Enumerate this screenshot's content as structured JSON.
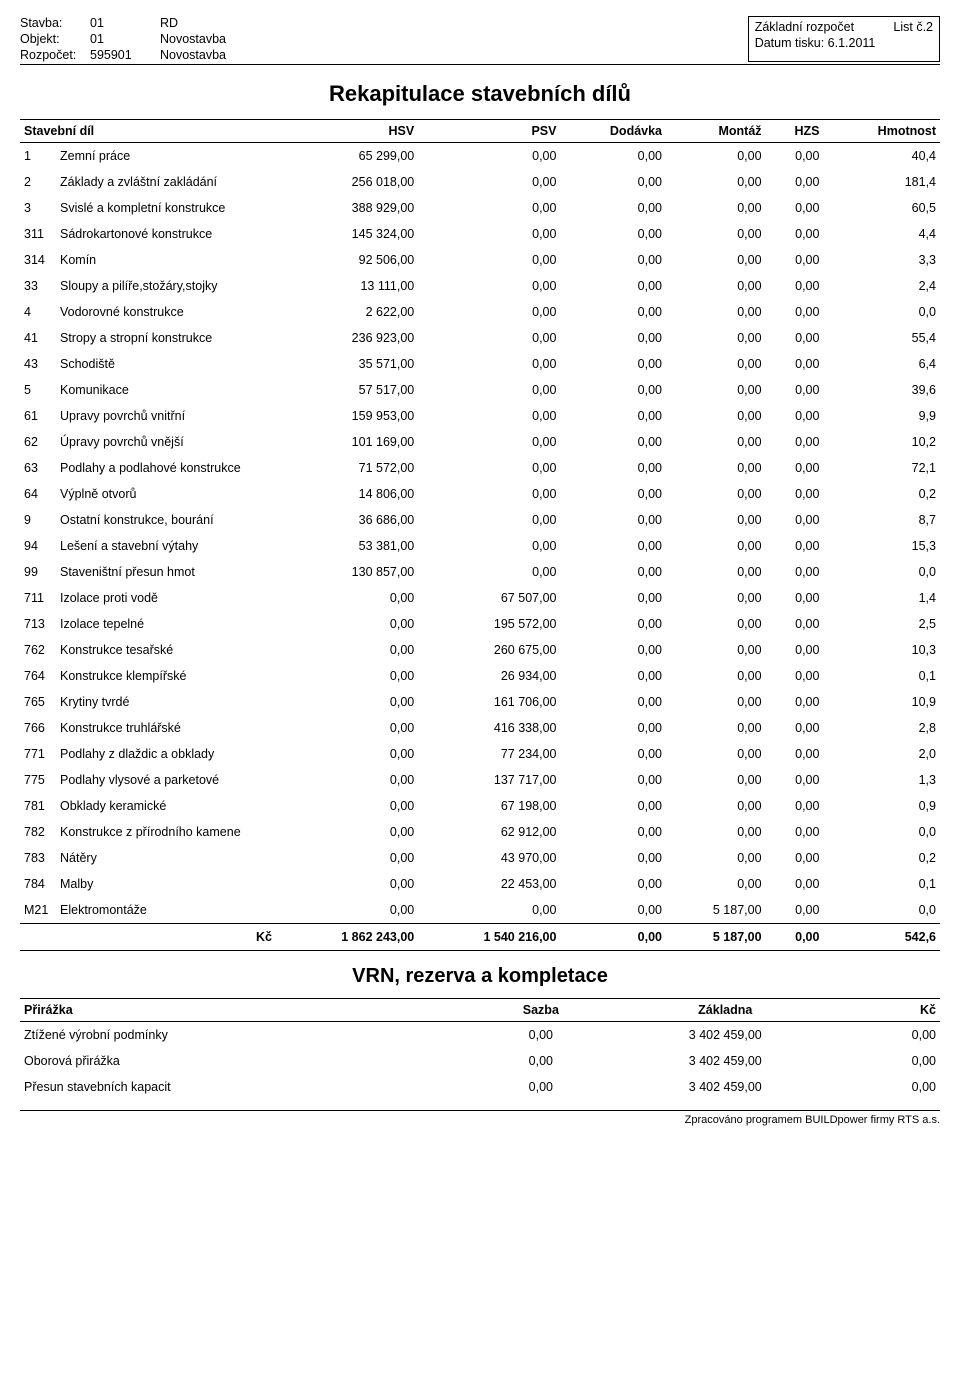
{
  "header": {
    "stavba_label": "Stavba:",
    "stavba_code": "01",
    "stavba_name": "RD",
    "objekt_label": "Objekt:",
    "objekt_code": "01",
    "objekt_name": "Novostavba",
    "rozpocet_label": "Rozpočet:",
    "rozpocet_code": "595901",
    "rozpocet_name": "Novostavba",
    "zakladni": "Základní rozpočet",
    "list": "List č.2",
    "datum_label": "Datum tisku:",
    "datum": "6.1.2011"
  },
  "title": "Rekapitulace stavebních dílů",
  "table": {
    "headers": {
      "dil": "Stavební díl",
      "hsv": "HSV",
      "psv": "PSV",
      "dodavka": "Dodávka",
      "montaz": "Montáž",
      "hzs": "HZS",
      "hmotnost": "Hmotnost"
    },
    "rows": [
      {
        "code": "1",
        "name": "Zemní práce",
        "hsv": "65 299,00",
        "psv": "0,00",
        "dod": "0,00",
        "mon": "0,00",
        "hzs": "0,00",
        "hm": "40,4"
      },
      {
        "code": "2",
        "name": "Základy a zvláštní zakládání",
        "hsv": "256 018,00",
        "psv": "0,00",
        "dod": "0,00",
        "mon": "0,00",
        "hzs": "0,00",
        "hm": "181,4"
      },
      {
        "code": "3",
        "name": "Svislé a kompletní konstrukce",
        "hsv": "388 929,00",
        "psv": "0,00",
        "dod": "0,00",
        "mon": "0,00",
        "hzs": "0,00",
        "hm": "60,5"
      },
      {
        "code": "311",
        "name": "Sádrokartonové konstrukce",
        "hsv": "145 324,00",
        "psv": "0,00",
        "dod": "0,00",
        "mon": "0,00",
        "hzs": "0,00",
        "hm": "4,4"
      },
      {
        "code": "314",
        "name": "Komín",
        "hsv": "92 506,00",
        "psv": "0,00",
        "dod": "0,00",
        "mon": "0,00",
        "hzs": "0,00",
        "hm": "3,3"
      },
      {
        "code": "33",
        "name": "Sloupy a pilíře,stožáry,stojky",
        "hsv": "13 111,00",
        "psv": "0,00",
        "dod": "0,00",
        "mon": "0,00",
        "hzs": "0,00",
        "hm": "2,4"
      },
      {
        "code": "4",
        "name": "Vodorovné konstrukce",
        "hsv": "2 622,00",
        "psv": "0,00",
        "dod": "0,00",
        "mon": "0,00",
        "hzs": "0,00",
        "hm": "0,0"
      },
      {
        "code": "41",
        "name": "Stropy a stropní konstrukce",
        "hsv": "236 923,00",
        "psv": "0,00",
        "dod": "0,00",
        "mon": "0,00",
        "hzs": "0,00",
        "hm": "55,4"
      },
      {
        "code": "43",
        "name": "Schodiště",
        "hsv": "35 571,00",
        "psv": "0,00",
        "dod": "0,00",
        "mon": "0,00",
        "hzs": "0,00",
        "hm": "6,4"
      },
      {
        "code": "5",
        "name": "Komunikace",
        "hsv": "57 517,00",
        "psv": "0,00",
        "dod": "0,00",
        "mon": "0,00",
        "hzs": "0,00",
        "hm": "39,6"
      },
      {
        "code": "61",
        "name": "Upravy povrchů vnitřní",
        "hsv": "159 953,00",
        "psv": "0,00",
        "dod": "0,00",
        "mon": "0,00",
        "hzs": "0,00",
        "hm": "9,9"
      },
      {
        "code": "62",
        "name": "Úpravy povrchů vnější",
        "hsv": "101 169,00",
        "psv": "0,00",
        "dod": "0,00",
        "mon": "0,00",
        "hzs": "0,00",
        "hm": "10,2"
      },
      {
        "code": "63",
        "name": "Podlahy a podlahové konstrukce",
        "hsv": "71 572,00",
        "psv": "0,00",
        "dod": "0,00",
        "mon": "0,00",
        "hzs": "0,00",
        "hm": "72,1"
      },
      {
        "code": "64",
        "name": "Výplně otvorů",
        "hsv": "14 806,00",
        "psv": "0,00",
        "dod": "0,00",
        "mon": "0,00",
        "hzs": "0,00",
        "hm": "0,2"
      },
      {
        "code": "9",
        "name": "Ostatní konstrukce, bourání",
        "hsv": "36 686,00",
        "psv": "0,00",
        "dod": "0,00",
        "mon": "0,00",
        "hzs": "0,00",
        "hm": "8,7"
      },
      {
        "code": "94",
        "name": "Lešení a stavební výtahy",
        "hsv": "53 381,00",
        "psv": "0,00",
        "dod": "0,00",
        "mon": "0,00",
        "hzs": "0,00",
        "hm": "15,3"
      },
      {
        "code": "99",
        "name": "Staveništní přesun hmot",
        "hsv": "130 857,00",
        "psv": "0,00",
        "dod": "0,00",
        "mon": "0,00",
        "hzs": "0,00",
        "hm": "0,0"
      },
      {
        "code": "711",
        "name": "Izolace proti vodě",
        "hsv": "0,00",
        "psv": "67 507,00",
        "dod": "0,00",
        "mon": "0,00",
        "hzs": "0,00",
        "hm": "1,4"
      },
      {
        "code": "713",
        "name": "Izolace tepelné",
        "hsv": "0,00",
        "psv": "195 572,00",
        "dod": "0,00",
        "mon": "0,00",
        "hzs": "0,00",
        "hm": "2,5"
      },
      {
        "code": "762",
        "name": "Konstrukce tesařské",
        "hsv": "0,00",
        "psv": "260 675,00",
        "dod": "0,00",
        "mon": "0,00",
        "hzs": "0,00",
        "hm": "10,3"
      },
      {
        "code": "764",
        "name": "Konstrukce klempířské",
        "hsv": "0,00",
        "psv": "26 934,00",
        "dod": "0,00",
        "mon": "0,00",
        "hzs": "0,00",
        "hm": "0,1"
      },
      {
        "code": "765",
        "name": "Krytiny tvrdé",
        "hsv": "0,00",
        "psv": "161 706,00",
        "dod": "0,00",
        "mon": "0,00",
        "hzs": "0,00",
        "hm": "10,9"
      },
      {
        "code": "766",
        "name": "Konstrukce truhlářské",
        "hsv": "0,00",
        "psv": "416 338,00",
        "dod": "0,00",
        "mon": "0,00",
        "hzs": "0,00",
        "hm": "2,8"
      },
      {
        "code": "771",
        "name": "Podlahy z dlaždic a obklady",
        "hsv": "0,00",
        "psv": "77 234,00",
        "dod": "0,00",
        "mon": "0,00",
        "hzs": "0,00",
        "hm": "2,0"
      },
      {
        "code": "775",
        "name": "Podlahy vlysové a parketové",
        "hsv": "0,00",
        "psv": "137 717,00",
        "dod": "0,00",
        "mon": "0,00",
        "hzs": "0,00",
        "hm": "1,3"
      },
      {
        "code": "781",
        "name": "Obklady keramické",
        "hsv": "0,00",
        "psv": "67 198,00",
        "dod": "0,00",
        "mon": "0,00",
        "hzs": "0,00",
        "hm": "0,9"
      },
      {
        "code": "782",
        "name": "Konstrukce z přírodního kamene",
        "hsv": "0,00",
        "psv": "62 912,00",
        "dod": "0,00",
        "mon": "0,00",
        "hzs": "0,00",
        "hm": "0,0"
      },
      {
        "code": "783",
        "name": "Nátěry",
        "hsv": "0,00",
        "psv": "43 970,00",
        "dod": "0,00",
        "mon": "0,00",
        "hzs": "0,00",
        "hm": "0,2"
      },
      {
        "code": "784",
        "name": "Malby",
        "hsv": "0,00",
        "psv": "22 453,00",
        "dod": "0,00",
        "mon": "0,00",
        "hzs": "0,00",
        "hm": "0,1"
      },
      {
        "code": "M21",
        "name": "Elektromontáže",
        "hsv": "0,00",
        "psv": "0,00",
        "dod": "0,00",
        "mon": "5 187,00",
        "hzs": "0,00",
        "hm": "0,0"
      }
    ],
    "total": {
      "label": "Kč",
      "hsv": "1 862 243,00",
      "psv": "1 540 216,00",
      "dod": "0,00",
      "mon": "5 187,00",
      "hzs": "0,00",
      "hm": "542,6"
    }
  },
  "vrn": {
    "title": "VRN, rezerva a kompletace",
    "headers": {
      "prirazka": "Přirážka",
      "sazba": "Sazba",
      "zakladna": "Základna",
      "kc": "Kč"
    },
    "rows": [
      {
        "name": "Ztížené výrobní podmínky",
        "sazba": "0,00",
        "zakladna": "3 402 459,00",
        "kc": "0,00"
      },
      {
        "name": "Oborová přirážka",
        "sazba": "0,00",
        "zakladna": "3 402 459,00",
        "kc": "0,00"
      },
      {
        "name": "Přesun stavebních kapacit",
        "sazba": "0,00",
        "zakladna": "3 402 459,00",
        "kc": "0,00"
      }
    ]
  },
  "footer": "Zpracováno programem BUILDpower firmy RTS a.s."
}
